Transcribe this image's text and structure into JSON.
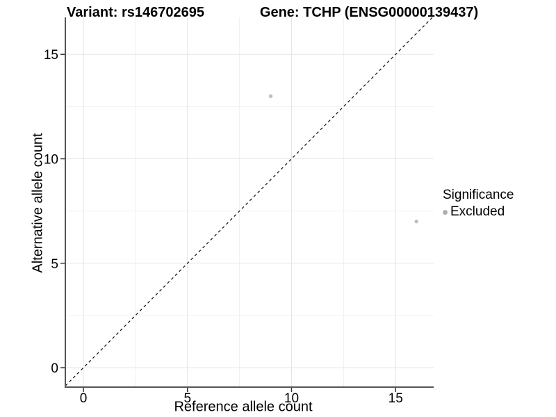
{
  "titles": {
    "variant": "Variant: rs146702695",
    "gene": "Gene: TCHP (ENSG00000139437)"
  },
  "legend": {
    "title": "Significance",
    "items": [
      {
        "label": "Excluded",
        "color": "#b0b0b0"
      }
    ]
  },
  "chart_data": {
    "type": "scatter",
    "title": "Variant: rs146702695 — Gene: TCHP (ENSG00000139437)",
    "xlabel": "Reference allele count",
    "ylabel": "Alternative allele count",
    "xlim": [
      -0.87,
      16.83
    ],
    "ylim": [
      -0.93,
      16.77
    ],
    "x_ticks": [
      0,
      5,
      10,
      15
    ],
    "y_ticks": [
      0,
      5,
      10,
      15
    ],
    "x_minor_ticks": [
      2.5,
      7.5,
      12.5
    ],
    "y_minor_ticks": [
      2.5,
      7.5,
      12.5
    ],
    "grid": true,
    "legend_position": "right",
    "series": [
      {
        "name": "Excluded",
        "color": "#bebebe",
        "points": [
          {
            "x": 9,
            "y": 13
          },
          {
            "x": 16,
            "y": 7
          }
        ]
      }
    ],
    "reference_line": {
      "type": "identity",
      "slope": 1,
      "intercept": 0,
      "style": "dashed",
      "color": "#1a1a1a"
    },
    "colors": {
      "grid_major": "#e5e5e5",
      "grid_minor": "#f0f0f0",
      "axis_line": "#555555",
      "tick_mark": "#333333",
      "point": "#bebebe"
    }
  }
}
